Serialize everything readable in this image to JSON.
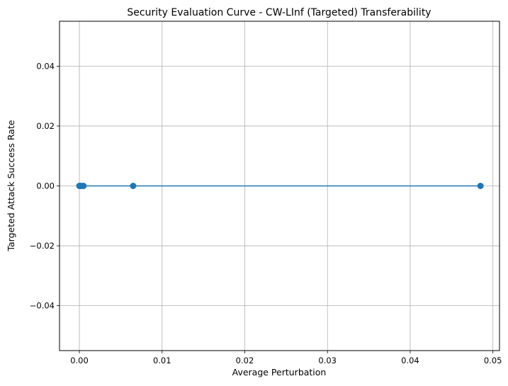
{
  "chart_data": {
    "type": "line",
    "title": "Security Evaluation Curve - CW-LInf (Targeted) Transferability",
    "xlabel": "Average Perturbation",
    "ylabel": "Targeted Attack Success Rate",
    "xlim": [
      -0.0024,
      0.0508
    ],
    "ylim": [
      -0.055,
      0.055
    ],
    "xticks": [
      0.0,
      0.01,
      0.02,
      0.03,
      0.04,
      0.05
    ],
    "xtick_labels": [
      "0.00",
      "0.01",
      "0.02",
      "0.03",
      "0.04",
      "0.05"
    ],
    "yticks": [
      -0.04,
      -0.02,
      0.0,
      0.02,
      0.04
    ],
    "ytick_labels": [
      "−0.04",
      "−0.02",
      "0.00",
      "0.02",
      "0.04"
    ],
    "grid": true,
    "series": [
      {
        "color": "#1f77b4",
        "marker": "circle",
        "x": [
          0.0,
          5e-05,
          0.0001,
          0.0002,
          0.0005,
          0.0065,
          0.0485
        ],
        "y": [
          0,
          0,
          0,
          0,
          0,
          0,
          0
        ]
      }
    ]
  }
}
